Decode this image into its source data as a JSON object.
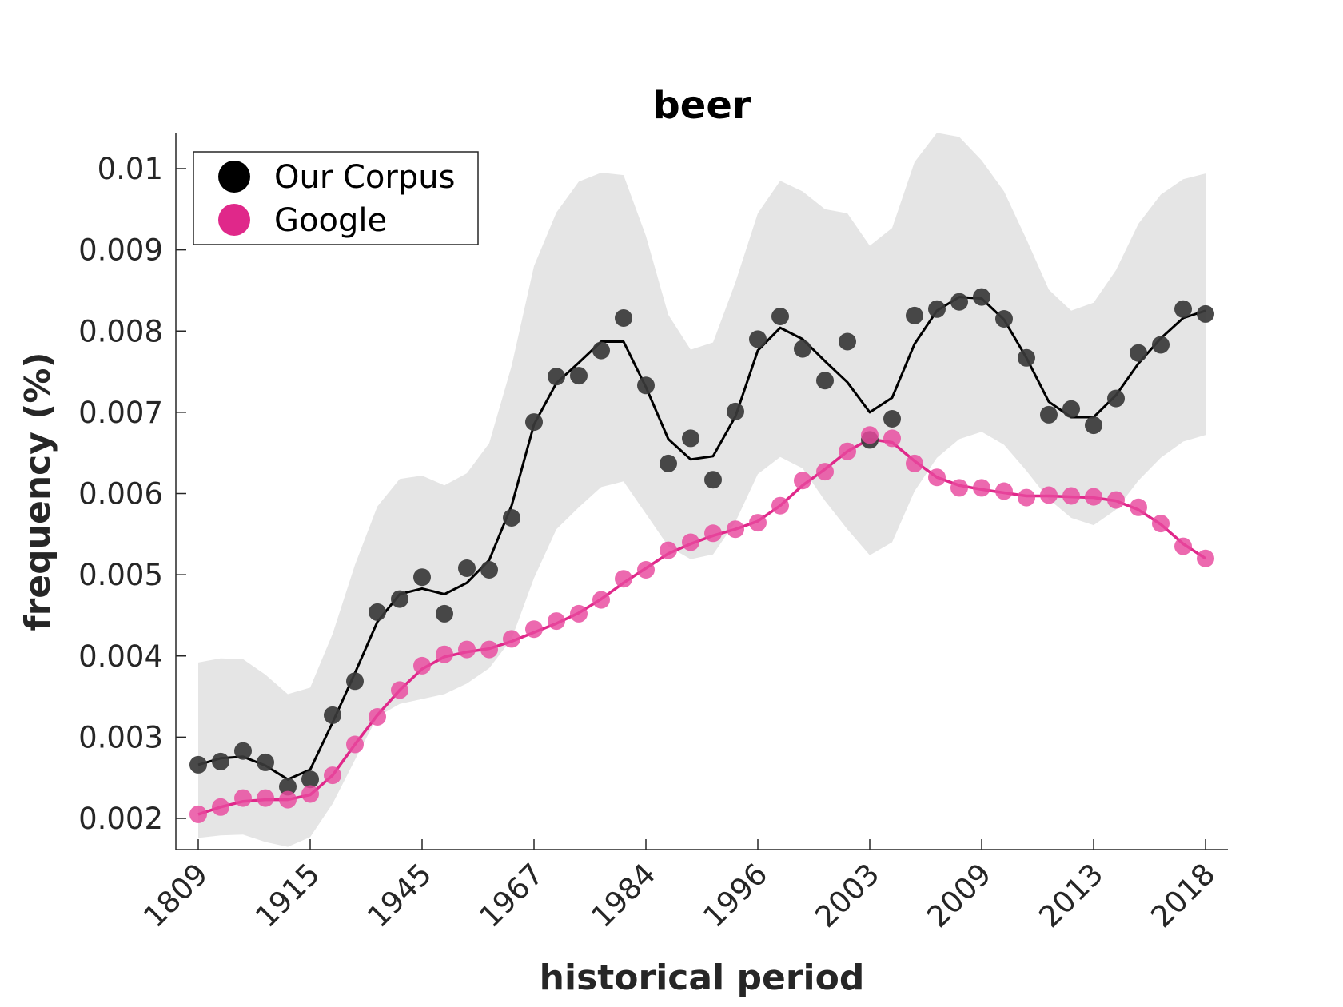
{
  "chart_data": {
    "type": "line",
    "title": "beer",
    "xlabel": "historical period",
    "ylabel": "frequency (%)",
    "x_tick_labels": [
      "1809",
      "1915",
      "1945",
      "1967",
      "1984",
      "1996",
      "2003",
      "2009",
      "2013",
      "2018"
    ],
    "y_tick_labels": [
      "0.002",
      "0.003",
      "0.004",
      "0.005",
      "0.006",
      "0.007",
      "0.008",
      "0.009",
      "0.01"
    ],
    "ylim": [
      0.00164,
      0.01044
    ],
    "grid": false,
    "legend_placement": "top-left",
    "series": [
      {
        "name": "Our Corpus",
        "color": "#000000",
        "marker_color": "#3a3a3a",
        "points": [
          0.00266,
          0.0027,
          0.00283,
          0.00269,
          0.00239,
          0.00248,
          0.00327,
          0.00369,
          0.00454,
          0.0047,
          0.00497,
          0.00452,
          0.00508,
          0.00506,
          0.0057,
          0.00688,
          0.00744,
          0.00745,
          0.00776,
          0.00816,
          0.00733,
          0.00637,
          0.00668,
          0.00617,
          0.00701,
          0.0079,
          0.00818,
          0.00778,
          0.00739,
          0.00787,
          0.00666,
          0.00692,
          0.00819,
          0.00827,
          0.00836,
          0.00842,
          0.00815,
          0.00767,
          0.00697,
          0.00704,
          0.00684,
          0.00717,
          0.00773,
          0.00783,
          0.00827,
          0.00821
        ],
        "smoothed": [
          0.00266,
          0.00274,
          0.00276,
          0.00265,
          0.00248,
          0.0026,
          0.00318,
          0.00379,
          0.00442,
          0.00476,
          0.00483,
          0.00476,
          0.0049,
          0.00518,
          0.00585,
          0.00685,
          0.00736,
          0.00761,
          0.00787,
          0.00787,
          0.00731,
          0.00667,
          0.00642,
          0.00646,
          0.00695,
          0.00776,
          0.00804,
          0.0079,
          0.00763,
          0.00737,
          0.007,
          0.00718,
          0.00784,
          0.00825,
          0.00842,
          0.0084,
          0.00814,
          0.00767,
          0.00713,
          0.00694,
          0.00694,
          0.00721,
          0.0076,
          0.00791,
          0.00816,
          0.00825
        ],
        "band_upper": [
          0.00392,
          0.00397,
          0.00396,
          0.00377,
          0.00353,
          0.00361,
          0.00427,
          0.00512,
          0.00584,
          0.00618,
          0.00622,
          0.0061,
          0.00625,
          0.00662,
          0.00757,
          0.0088,
          0.00946,
          0.00984,
          0.00995,
          0.00992,
          0.00917,
          0.0082,
          0.00777,
          0.00786,
          0.0086,
          0.00945,
          0.00985,
          0.00972,
          0.0095,
          0.00945,
          0.00905,
          0.00927,
          0.01008,
          0.01044,
          0.01039,
          0.0101,
          0.00972,
          0.00913,
          0.00851,
          0.00825,
          0.00835,
          0.00875,
          0.00932,
          0.00968,
          0.00987,
          0.00994
        ],
        "band_lower": [
          0.00176,
          0.00179,
          0.0018,
          0.00171,
          0.00165,
          0.00177,
          0.00218,
          0.00272,
          0.00325,
          0.00341,
          0.00347,
          0.00353,
          0.00366,
          0.00385,
          0.00421,
          0.00496,
          0.00556,
          0.00583,
          0.00608,
          0.00615,
          0.00575,
          0.00535,
          0.00519,
          0.00525,
          0.00565,
          0.00624,
          0.00645,
          0.00631,
          0.00591,
          0.00556,
          0.00524,
          0.0054,
          0.00603,
          0.00644,
          0.00667,
          0.00676,
          0.0066,
          0.00628,
          0.00593,
          0.0057,
          0.00561,
          0.0058,
          0.00616,
          0.00644,
          0.00664,
          0.00672
        ]
      },
      {
        "name": "Google",
        "color": "#e0288a",
        "marker_color": "#e8489e",
        "points": [
          0.00205,
          0.00214,
          0.00225,
          0.00225,
          0.00223,
          0.0023,
          0.00253,
          0.00291,
          0.00325,
          0.00358,
          0.00388,
          0.00402,
          0.00408,
          0.00408,
          0.00421,
          0.00433,
          0.00443,
          0.00452,
          0.00469,
          0.00495,
          0.00506,
          0.0053,
          0.0054,
          0.00551,
          0.00556,
          0.00564,
          0.00585,
          0.00616,
          0.00627,
          0.00652,
          0.00672,
          0.00668,
          0.00637,
          0.0062,
          0.00607,
          0.00607,
          0.00603,
          0.00595,
          0.00598,
          0.00597,
          0.00596,
          0.00592,
          0.00583,
          0.00563,
          0.00535,
          0.0052
        ],
        "smoothed": [
          0.00205,
          0.00214,
          0.00221,
          0.00223,
          0.00223,
          0.00229,
          0.00253,
          0.00291,
          0.00327,
          0.00358,
          0.00384,
          0.00399,
          0.00405,
          0.00409,
          0.00418,
          0.00429,
          0.0044,
          0.00453,
          0.0047,
          0.0049,
          0.00508,
          0.00526,
          0.00538,
          0.00548,
          0.00556,
          0.00566,
          0.00585,
          0.0061,
          0.0063,
          0.00652,
          0.00667,
          0.00663,
          0.0064,
          0.0062,
          0.0061,
          0.00605,
          0.00601,
          0.00597,
          0.00597,
          0.00596,
          0.00595,
          0.00591,
          0.0058,
          0.00562,
          0.00538,
          0.0052
        ]
      }
    ]
  }
}
